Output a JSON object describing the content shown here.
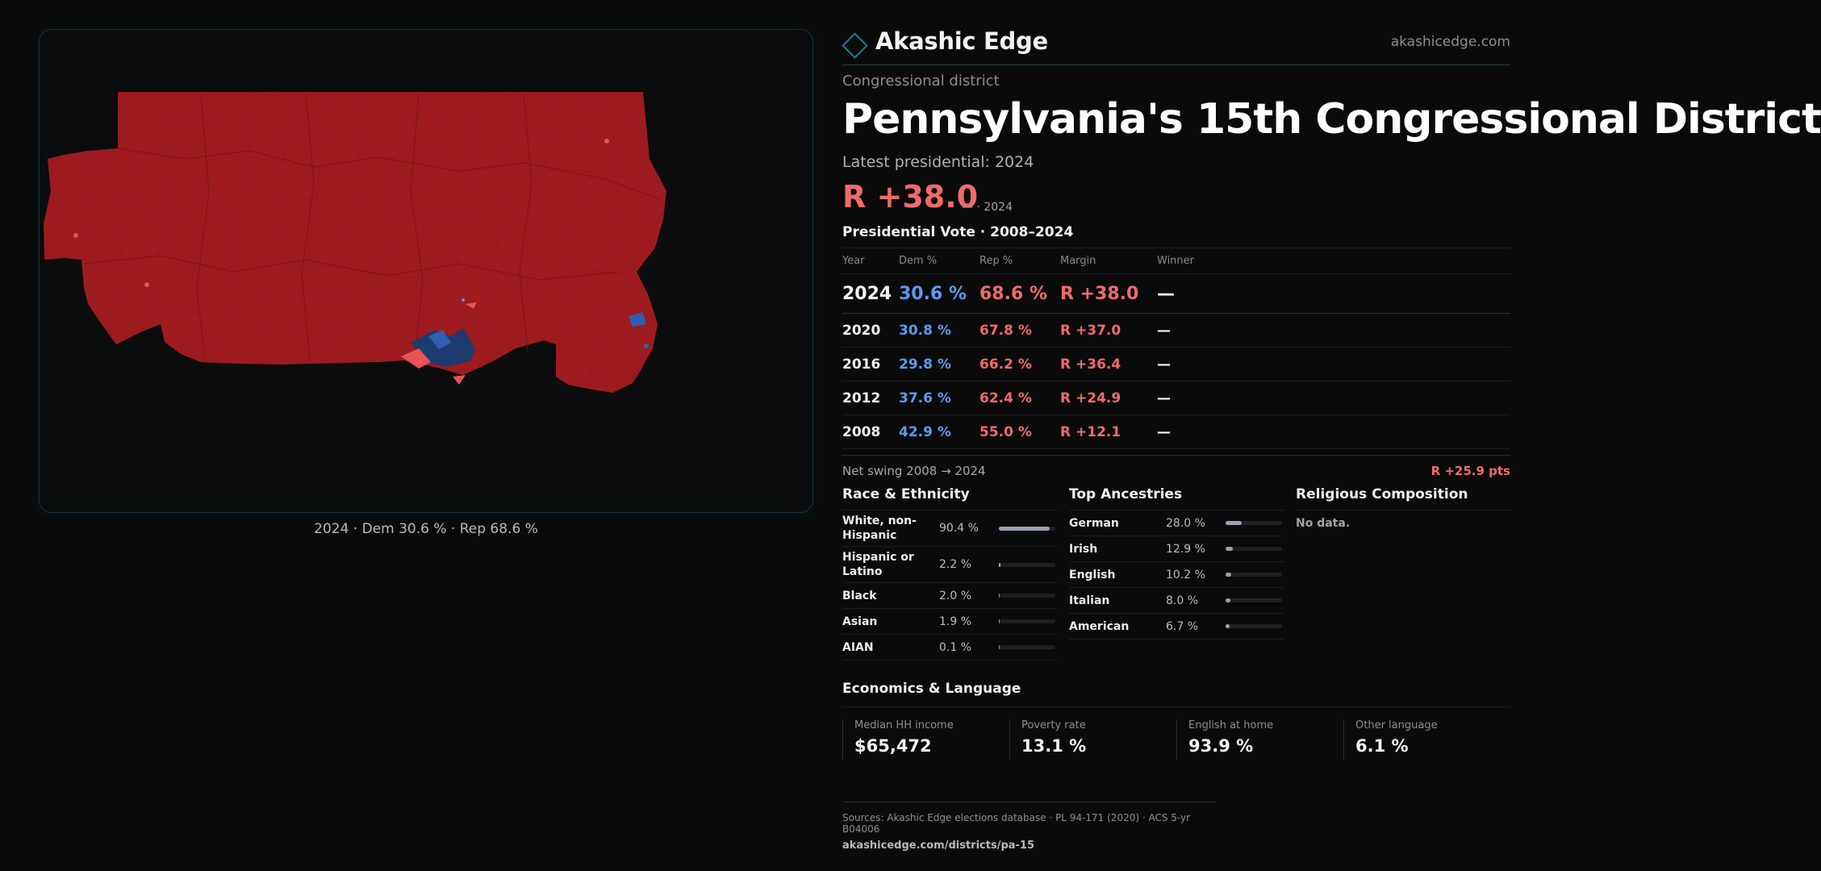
{
  "brand": {
    "name": "Akashic Edge",
    "site": "akashicedge.com"
  },
  "district": {
    "eyebrow": "Congressional district",
    "title": "Pennsylvania's 15th Congressional District",
    "latest_label": "Latest presidential: 2024",
    "latest_margin": "R +38.0",
    "latest_margin_sub": "— · 2024"
  },
  "map": {
    "caption": "2024 · Dem 30.6 % · Rep 68.6 %",
    "colors": {
      "rep": "#9e1b20",
      "rep_light": "#e85454",
      "dem": "#2f5fae",
      "dem_dark": "#1d3b6e"
    }
  },
  "presidential": {
    "title": "Presidential Vote · 2008–2024",
    "headers": [
      "Year",
      "Dem %",
      "Rep %",
      "Margin",
      "Winner"
    ],
    "rows": [
      {
        "year": "2024",
        "dem": "30.6 %",
        "rep": "68.6 %",
        "margin": "R +38.0",
        "winner": "—"
      },
      {
        "year": "2020",
        "dem": "30.8 %",
        "rep": "67.8 %",
        "margin": "R +37.0",
        "winner": "—"
      },
      {
        "year": "2016",
        "dem": "29.8 %",
        "rep": "66.2 %",
        "margin": "R +36.4",
        "winner": "—"
      },
      {
        "year": "2012",
        "dem": "37.6 %",
        "rep": "62.4 %",
        "margin": "R +24.9",
        "winner": "—"
      },
      {
        "year": "2008",
        "dem": "42.9 %",
        "rep": "55.0 %",
        "margin": "R +12.1",
        "winner": "—"
      }
    ],
    "swing_label": "Net swing 2008 → 2024",
    "swing_value": "R +25.9 pts"
  },
  "race": {
    "title": "Race & Ethnicity",
    "items": [
      {
        "label": "White, non-Hispanic",
        "value": "90.4 %",
        "share": 0.904,
        "color": "#9aa3b5"
      },
      {
        "label": "Hispanic or Latino",
        "value": "2.2 %",
        "share": 0.022,
        "color": "#e0a43c"
      },
      {
        "label": "Black",
        "value": "2.0 %",
        "share": 0.02,
        "color": "#8f7be0"
      },
      {
        "label": "Asian",
        "value": "1.9 %",
        "share": 0.019,
        "color": "#3cc49a"
      },
      {
        "label": "AIAN",
        "value": "0.1 %",
        "share": 0.001,
        "color": "#c77b5a"
      }
    ]
  },
  "ancestry": {
    "title": "Top Ancestries",
    "items": [
      {
        "label": "German",
        "value": "28.0 %",
        "share": 0.28
      },
      {
        "label": "Irish",
        "value": "12.9 %",
        "share": 0.129
      },
      {
        "label": "English",
        "value": "10.2 %",
        "share": 0.102
      },
      {
        "label": "Italian",
        "value": "8.0 %",
        "share": 0.08
      },
      {
        "label": "American",
        "value": "6.7 %",
        "share": 0.067
      }
    ],
    "bar_color": "#9aa3b5"
  },
  "religion": {
    "title": "Religious Composition",
    "empty": "No data."
  },
  "economics": {
    "title": "Economics & Language",
    "stats": [
      {
        "label": "Median HH income",
        "value": "$65,472"
      },
      {
        "label": "Poverty rate",
        "value": "13.1 %"
      },
      {
        "label": "English at home",
        "value": "93.9 %"
      },
      {
        "label": "Other language",
        "value": "6.1 %"
      }
    ]
  },
  "footer": {
    "sources": "Sources: Akashic Edge elections database · PL 94-171 (2020) · ACS 5-yr B04006",
    "url": "akashicedge.com/districts/pa-15"
  }
}
